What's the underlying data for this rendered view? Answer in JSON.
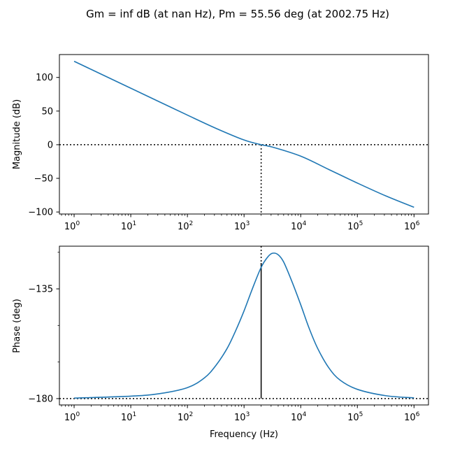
{
  "figure": {
    "title": "Gm = inf dB (at nan Hz), Pm = 55.56 deg (at 2002.75 Hz)"
  },
  "chart_data": [
    {
      "type": "line",
      "panel": "magnitude",
      "ylabel": "Magnitude (dB)",
      "xlabel": "",
      "xscale": "log",
      "xlim": [
        0.55,
        1800000
      ],
      "ylim": [
        -103,
        134
      ],
      "x_ticks": [
        {
          "value": 1,
          "base": "10",
          "exp": "0"
        },
        {
          "value": 10,
          "base": "10",
          "exp": "1"
        },
        {
          "value": 100,
          "base": "10",
          "exp": "2"
        },
        {
          "value": 1000,
          "base": "10",
          "exp": "3"
        },
        {
          "value": 10000,
          "base": "10",
          "exp": "4"
        },
        {
          "value": 100000,
          "base": "10",
          "exp": "5"
        },
        {
          "value": 1000000,
          "base": "10",
          "exp": "6"
        }
      ],
      "y_ticks": [
        {
          "value": 100,
          "label": "100"
        },
        {
          "value": 50,
          "label": "50"
        },
        {
          "value": 0,
          "label": "0"
        },
        {
          "value": -50,
          "label": "−50"
        },
        {
          "value": -100,
          "label": "−100"
        }
      ],
      "reference_line": {
        "y": 0
      },
      "crossover_marker": {
        "x": 2002.75,
        "y_from": 0,
        "y_to": -103
      },
      "series": [
        {
          "color": "#1f77b4",
          "x": [
            1,
            3.16,
            10,
            31.6,
            100,
            316,
            1000,
            2000,
            3160,
            10000,
            31600,
            100000,
            316000,
            1000000
          ],
          "y": [
            124,
            104,
            84,
            64,
            44,
            24.5,
            7,
            0,
            -3.5,
            -17,
            -37,
            -57,
            -76,
            -93
          ]
        }
      ]
    },
    {
      "type": "line",
      "panel": "phase",
      "ylabel": "Phase (deg)",
      "xlabel": "Frequency (Hz)",
      "xscale": "log",
      "xlim": [
        0.55,
        1800000
      ],
      "ylim": [
        -182.6,
        -117.5
      ],
      "x_ticks": [
        {
          "value": 1,
          "base": "10",
          "exp": "0"
        },
        {
          "value": 10,
          "base": "10",
          "exp": "1"
        },
        {
          "value": 100,
          "base": "10",
          "exp": "2"
        },
        {
          "value": 1000,
          "base": "10",
          "exp": "3"
        },
        {
          "value": 10000,
          "base": "10",
          "exp": "4"
        },
        {
          "value": 100000,
          "base": "10",
          "exp": "5"
        },
        {
          "value": 1000000,
          "base": "10",
          "exp": "6"
        }
      ],
      "y_ticks": [
        {
          "value": -135,
          "label": "−135"
        },
        {
          "value": -180,
          "label": "−180"
        }
      ],
      "y_minor_ticks": [
        -120,
        -150,
        -165
      ],
      "reference_line": {
        "y": -180
      },
      "crossover_marker": {
        "x": 2002.75,
        "y_from": -117.5,
        "y_to": -124.4
      },
      "phase_margin_line": {
        "x": 2002.75,
        "y_from": -180,
        "y_to": -124.4
      },
      "series": [
        {
          "color": "#1f77b4",
          "x": [
            1,
            10,
            31.6,
            100,
            200,
            316,
            500,
            700,
            1000,
            1400,
            2000,
            2600,
            3160,
            4000,
            5000,
            7000,
            10000,
            14000,
            20000,
            31600,
            50000,
            100000,
            316000,
            1000000
          ],
          "y": [
            -179.8,
            -179,
            -178,
            -175.5,
            -171.5,
            -166.5,
            -159.5,
            -152.5,
            -144,
            -135,
            -126.2,
            -122,
            -120.4,
            -121,
            -124,
            -132,
            -141.5,
            -151,
            -159.5,
            -167.5,
            -172.5,
            -176.2,
            -178.8,
            -179.7
          ]
        }
      ]
    }
  ]
}
